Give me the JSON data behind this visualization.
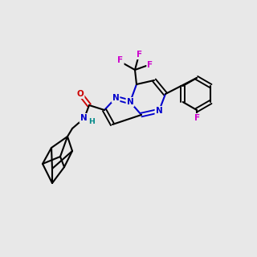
{
  "bg": "#e8e8e8",
  "nc": "#0000cc",
  "oc": "#cc0000",
  "fc": "#cc00cc",
  "bc": "#000000",
  "lw": 1.5,
  "fs": 7.5
}
